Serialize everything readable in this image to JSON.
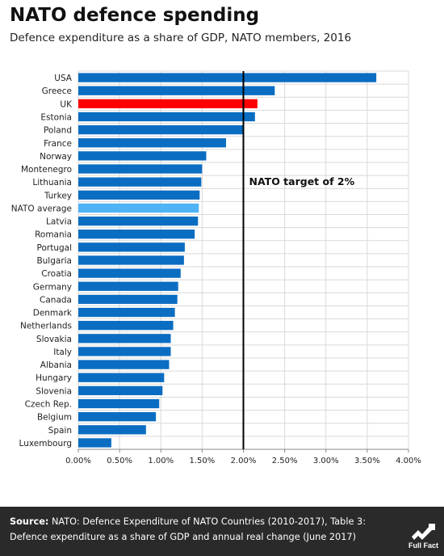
{
  "header": {
    "title": "NATO defence spending",
    "subtitle": "Defence expenditure as a share of GDP, NATO members, 2016"
  },
  "chart_data": {
    "type": "bar",
    "orientation": "horizontal",
    "categories": [
      "USA",
      "Greece",
      "UK",
      "Estonia",
      "Poland",
      "France",
      "Norway",
      "Montenegro",
      "Lithuania",
      "Turkey",
      "NATO average",
      "Latvia",
      "Romania",
      "Portugal",
      "Bulgaria",
      "Croatia",
      "Germany",
      "Canada",
      "Denmark",
      "Netherlands",
      "Slovakia",
      "Italy",
      "Albania",
      "Hungary",
      "Slovenia",
      "Czech Rep.",
      "Belgium",
      "Spain",
      "Luxembourg"
    ],
    "values": [
      3.61,
      2.38,
      2.17,
      2.14,
      2.0,
      1.79,
      1.55,
      1.5,
      1.49,
      1.47,
      1.46,
      1.45,
      1.41,
      1.29,
      1.28,
      1.24,
      1.21,
      1.2,
      1.17,
      1.15,
      1.12,
      1.12,
      1.1,
      1.04,
      1.02,
      0.98,
      0.94,
      0.82,
      0.4
    ],
    "highlight": {
      "UK": "#ff0000",
      "NATO average": "#4fb3f5"
    },
    "bar_color": "#0a6dc2",
    "xlim": [
      0,
      4
    ],
    "x_ticks": [
      "0.00%",
      "0.50%",
      "1.00%",
      "1.50%",
      "2.00%",
      "2.50%",
      "3.00%",
      "3.50%",
      "4.00%"
    ],
    "reference_line": {
      "value": 2.0,
      "label": "NATO target of 2%"
    },
    "grid": true
  },
  "footer": {
    "source_label": "Source:",
    "source_text": "NATO: Defence Expenditure of  NATO Countries (2010-2017), Table 3: Defence expenditure as a share of GDP and annual real change (June 2017)",
    "logo_text": "Full Fact"
  }
}
